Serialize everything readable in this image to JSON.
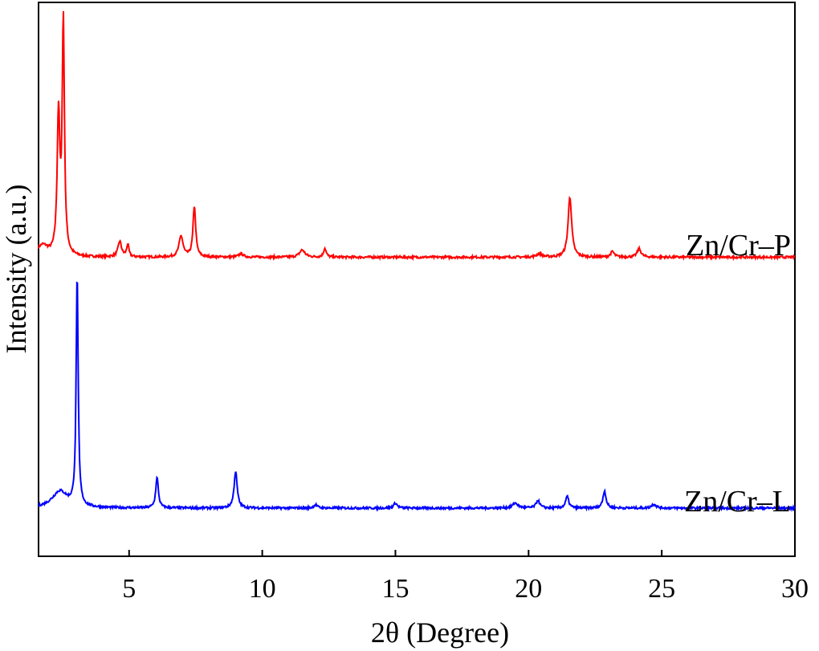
{
  "chart_data": {
    "type": "line",
    "title": "",
    "xlabel": "2θ (Degree)",
    "ylabel": "Intensity (a.u.)",
    "xlim": [
      1.6,
      30
    ],
    "ylim": [
      0,
      1
    ],
    "xticks": [
      5,
      10,
      15,
      20,
      25,
      30
    ],
    "x_tick_labels": [
      "5",
      "10",
      "15",
      "20",
      "25",
      "30"
    ],
    "y_ticks_shown": false,
    "grid": false,
    "legend": "none",
    "series": [
      {
        "name": "Zn/Cr–P",
        "color": "#ff0000",
        "offset": 0.54,
        "peaks": [
          {
            "x": 1.75,
            "height": 0.02,
            "width": 0.25
          },
          {
            "x": 2.35,
            "height": 0.25,
            "width": 0.06
          },
          {
            "x": 2.53,
            "height": 0.42,
            "width": 0.05
          },
          {
            "x": 4.65,
            "height": 0.028,
            "width": 0.08
          },
          {
            "x": 4.95,
            "height": 0.022,
            "width": 0.05
          },
          {
            "x": 6.95,
            "height": 0.038,
            "width": 0.09
          },
          {
            "x": 7.45,
            "height": 0.092,
            "width": 0.06
          },
          {
            "x": 9.2,
            "height": 0.006,
            "width": 0.1
          },
          {
            "x": 11.5,
            "height": 0.013,
            "width": 0.12
          },
          {
            "x": 12.35,
            "height": 0.016,
            "width": 0.06
          },
          {
            "x": 20.4,
            "height": 0.006,
            "width": 0.12
          },
          {
            "x": 21.55,
            "height": 0.109,
            "width": 0.08
          },
          {
            "x": 23.15,
            "height": 0.01,
            "width": 0.08
          },
          {
            "x": 24.15,
            "height": 0.015,
            "width": 0.09
          }
        ]
      },
      {
        "name": "Zn/Cr–L",
        "color": "#0000ff",
        "offset": 0.087,
        "peaks": [
          {
            "x": 2.4,
            "height": 0.03,
            "width": 0.35
          },
          {
            "x": 3.05,
            "height": 0.42,
            "width": 0.045
          },
          {
            "x": 6.05,
            "height": 0.055,
            "width": 0.06
          },
          {
            "x": 9.0,
            "height": 0.066,
            "width": 0.07
          },
          {
            "x": 12.0,
            "height": 0.006,
            "width": 0.08
          },
          {
            "x": 15.0,
            "height": 0.009,
            "width": 0.08
          },
          {
            "x": 19.5,
            "height": 0.009,
            "width": 0.12
          },
          {
            "x": 20.35,
            "height": 0.014,
            "width": 0.08
          },
          {
            "x": 21.45,
            "height": 0.021,
            "width": 0.07
          },
          {
            "x": 22.85,
            "height": 0.031,
            "width": 0.07
          },
          {
            "x": 24.7,
            "height": 0.007,
            "width": 0.1
          }
        ]
      }
    ]
  }
}
